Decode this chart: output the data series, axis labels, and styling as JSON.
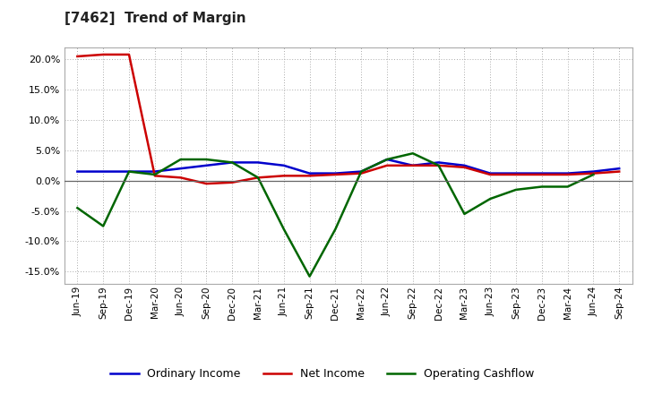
{
  "title": "[7462]  Trend of Margin",
  "x_labels": [
    "Jun-19",
    "Sep-19",
    "Dec-19",
    "Mar-20",
    "Jun-20",
    "Sep-20",
    "Dec-20",
    "Mar-21",
    "Jun-21",
    "Sep-21",
    "Dec-21",
    "Mar-22",
    "Jun-22",
    "Sep-22",
    "Dec-22",
    "Mar-23",
    "Jun-23",
    "Sep-23",
    "Dec-23",
    "Mar-24",
    "Jun-24",
    "Sep-24"
  ],
  "ordinary_income": [
    1.5,
    1.5,
    1.5,
    1.5,
    2.0,
    2.5,
    3.0,
    3.0,
    2.5,
    1.2,
    1.2,
    1.5,
    3.5,
    2.5,
    3.0,
    2.5,
    1.2,
    1.2,
    1.2,
    1.2,
    1.5,
    2.0
  ],
  "net_income": [
    20.5,
    20.8,
    20.8,
    0.8,
    0.5,
    -0.5,
    -0.3,
    0.5,
    0.8,
    0.8,
    1.0,
    1.2,
    2.5,
    2.5,
    2.5,
    2.2,
    1.0,
    1.0,
    1.0,
    1.0,
    1.2,
    1.5
  ],
  "operating_cf": [
    -4.5,
    -7.5,
    1.5,
    1.0,
    3.5,
    3.5,
    3.0,
    0.5,
    -8.0,
    -15.8,
    -8.0,
    1.5,
    3.5,
    4.5,
    2.5,
    -5.5,
    -3.0,
    -1.5,
    -1.0,
    -1.0,
    1.0,
    null
  ],
  "ylim": [
    -17,
    22
  ],
  "yticks": [
    -15.0,
    -10.0,
    -5.0,
    0.0,
    5.0,
    10.0,
    15.0,
    20.0
  ],
  "color_ordinary": "#0000cc",
  "color_net": "#cc0000",
  "color_cf": "#006600",
  "background_color": "#ffffff",
  "grid_color": "#aaaaaa",
  "legend_ordinary": "Ordinary Income",
  "legend_net": "Net Income",
  "legend_cf": "Operating Cashflow"
}
